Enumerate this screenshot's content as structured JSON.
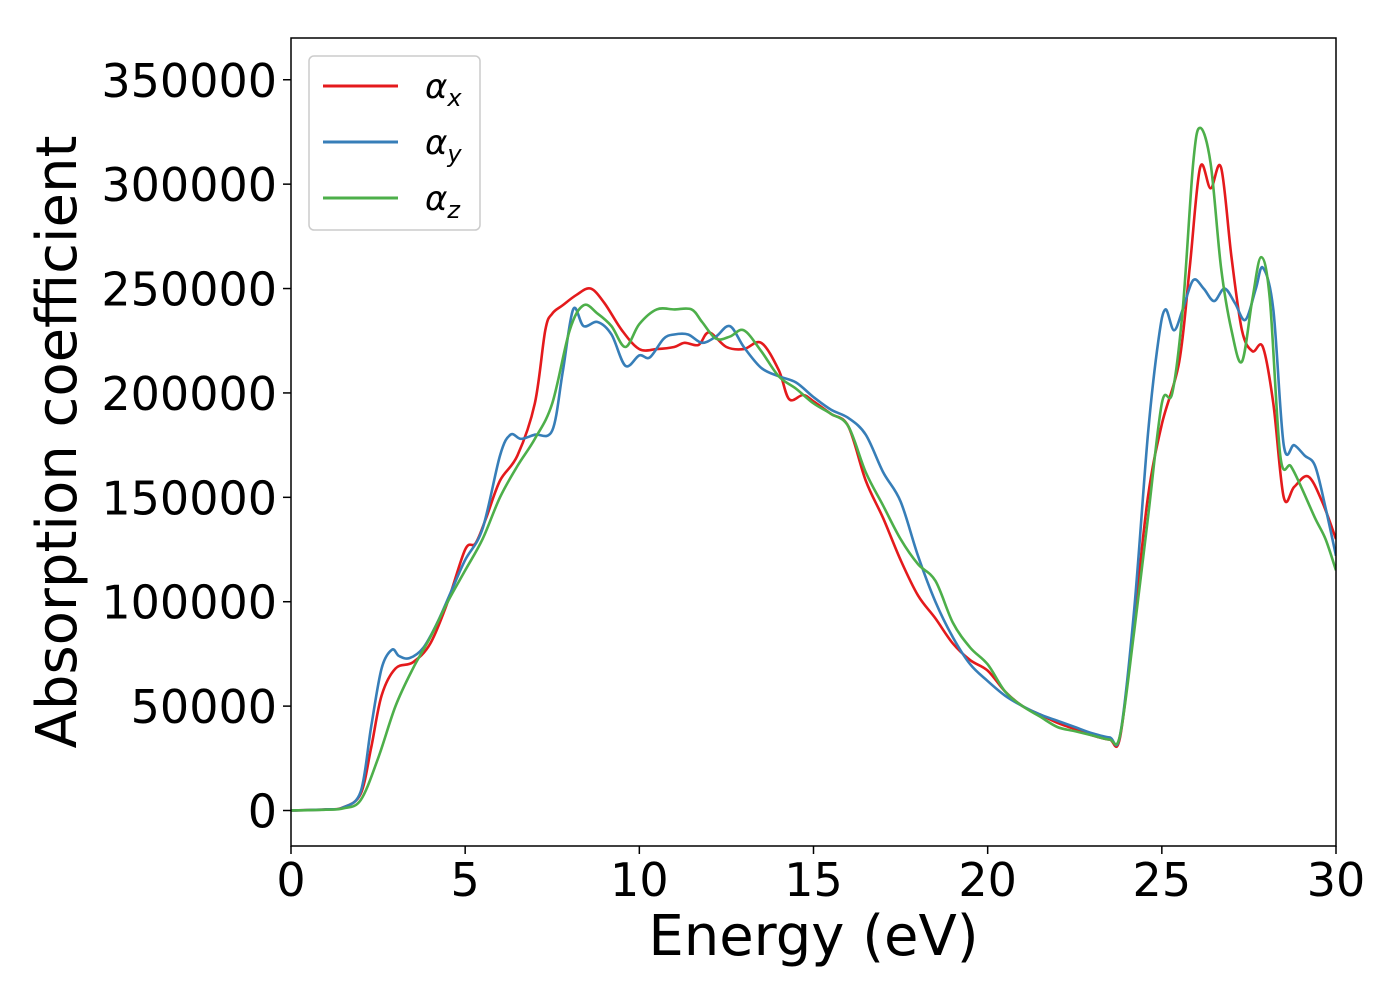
{
  "chart_data": {
    "type": "line",
    "title": "",
    "xlabel": "Energy (eV)",
    "ylabel": "Absorption coefficient",
    "xlim": [
      0,
      30
    ],
    "ylim": [
      -17000,
      370000
    ],
    "xticks": [
      0,
      5,
      10,
      15,
      20,
      25,
      30
    ],
    "yticks": [
      0,
      50000,
      100000,
      150000,
      200000,
      250000,
      300000,
      350000
    ],
    "grid": false,
    "legend_position": "top-left",
    "series": [
      {
        "name": "α_x",
        "legend_symbol": "α",
        "legend_subscript": "x",
        "color": "#e41a1c",
        "x": [
          0,
          1,
          1.5,
          2,
          2.3,
          2.6,
          3.0,
          3.5,
          4.0,
          4.5,
          5.0,
          5.3,
          5.6,
          6.0,
          6.5,
          7.0,
          7.3,
          7.5,
          7.8,
          8.2,
          8.6,
          9.0,
          9.5,
          10.0,
          10.5,
          11.0,
          11.3,
          11.7,
          12.0,
          12.5,
          13.0,
          13.5,
          14.0,
          14.3,
          14.7,
          15.0,
          15.5,
          16.0,
          16.5,
          17.0,
          17.5,
          18.0,
          18.5,
          19.0,
          19.5,
          20.0,
          20.5,
          21.0,
          21.5,
          22.0,
          22.5,
          23.0,
          23.5,
          23.8,
          24.2,
          24.6,
          25.0,
          25.5,
          25.8,
          26.1,
          26.4,
          26.7,
          27.0,
          27.3,
          27.6,
          27.9,
          28.2,
          28.5,
          28.8,
          29.2,
          29.6,
          30.0
        ],
        "y": [
          0,
          500,
          1500,
          8000,
          30000,
          55000,
          68000,
          71000,
          80000,
          100000,
          125000,
          128000,
          140000,
          158000,
          170000,
          195000,
          230000,
          238000,
          242000,
          247000,
          250000,
          243000,
          230000,
          221000,
          221000,
          222000,
          224000,
          223000,
          229000,
          222000,
          221000,
          224000,
          211000,
          197000,
          199000,
          196000,
          190000,
          184000,
          158000,
          140000,
          120000,
          103000,
          92000,
          80000,
          72000,
          67000,
          57000,
          50000,
          46000,
          42000,
          39000,
          36000,
          34000,
          35000,
          90000,
          150000,
          185000,
          215000,
          260000,
          308000,
          298000,
          308000,
          265000,
          230000,
          220000,
          222000,
          195000,
          150000,
          155000,
          160000,
          148000,
          130000
        ]
      },
      {
        "name": "α_y",
        "legend_symbol": "α",
        "legend_subscript": "y",
        "color": "#377eb8",
        "x": [
          0,
          1,
          1.5,
          2,
          2.3,
          2.6,
          2.9,
          3.1,
          3.4,
          3.8,
          4.2,
          4.6,
          5.0,
          5.5,
          6.0,
          6.3,
          6.6,
          7.0,
          7.5,
          7.8,
          8.1,
          8.4,
          8.8,
          9.2,
          9.6,
          10.0,
          10.3,
          10.7,
          11.0,
          11.4,
          11.8,
          12.2,
          12.6,
          13.0,
          13.5,
          14.0,
          14.5,
          15.0,
          15.5,
          16.0,
          16.5,
          17.0,
          17.5,
          18.0,
          18.5,
          19.0,
          19.5,
          20.0,
          20.5,
          21.0,
          21.5,
          22.0,
          22.5,
          23.0,
          23.5,
          23.8,
          24.2,
          24.6,
          24.9,
          25.1,
          25.35,
          25.6,
          25.9,
          26.2,
          26.5,
          26.8,
          27.1,
          27.4,
          27.7,
          27.9,
          28.2,
          28.5,
          28.8,
          29.1,
          29.4,
          29.7,
          30.0
        ],
        "y": [
          0,
          500,
          1500,
          9000,
          40000,
          68000,
          77000,
          74000,
          73000,
          78000,
          90000,
          105000,
          120000,
          135000,
          170000,
          180000,
          178000,
          180000,
          182000,
          210000,
          240000,
          232000,
          234000,
          228000,
          213000,
          218000,
          217000,
          226000,
          228000,
          228000,
          224000,
          227000,
          232000,
          222000,
          212000,
          208000,
          205000,
          198000,
          192000,
          188000,
          180000,
          162000,
          148000,
          122000,
          100000,
          83000,
          70000,
          62000,
          55000,
          50000,
          46000,
          43000,
          40000,
          37000,
          35000,
          36000,
          95000,
          180000,
          225000,
          240000,
          230000,
          240000,
          254000,
          250000,
          244000,
          250000,
          243000,
          235000,
          250000,
          260000,
          240000,
          175000,
          175000,
          170000,
          165000,
          145000,
          122000
        ]
      },
      {
        "name": "α_z",
        "legend_symbol": "α",
        "legend_subscript": "z",
        "color": "#4daf4a",
        "x": [
          0,
          1,
          1.5,
          2,
          2.5,
          3.0,
          3.5,
          4.0,
          4.5,
          5.0,
          5.5,
          6.0,
          6.5,
          7.0,
          7.5,
          8.0,
          8.4,
          8.8,
          9.2,
          9.6,
          10.0,
          10.5,
          11.0,
          11.5,
          11.8,
          12.2,
          12.6,
          13.0,
          13.5,
          14.0,
          14.5,
          15.0,
          15.5,
          16.0,
          16.5,
          17.0,
          17.5,
          18.0,
          18.5,
          19.0,
          19.5,
          20.0,
          20.5,
          21.0,
          21.5,
          22.0,
          22.5,
          23.0,
          23.5,
          23.8,
          24.2,
          24.6,
          25.0,
          25.3,
          25.6,
          25.9,
          26.1,
          26.4,
          26.7,
          27.0,
          27.3,
          27.6,
          27.85,
          28.1,
          28.4,
          28.7,
          29.0,
          29.4,
          29.7,
          30.0
        ],
        "y": [
          0,
          400,
          1000,
          5000,
          25000,
          50000,
          68000,
          83000,
          100000,
          115000,
          130000,
          150000,
          165000,
          178000,
          195000,
          230000,
          242000,
          238000,
          232000,
          222000,
          233000,
          240000,
          240000,
          240000,
          234000,
          226000,
          227000,
          230000,
          220000,
          208000,
          202000,
          195000,
          190000,
          184000,
          162000,
          146000,
          130000,
          118000,
          110000,
          90000,
          78000,
          70000,
          57000,
          50000,
          45000,
          40000,
          38000,
          36000,
          34000,
          36000,
          85000,
          140000,
          195000,
          200000,
          240000,
          310000,
          327000,
          310000,
          260000,
          230000,
          215000,
          245000,
          265000,
          245000,
          170000,
          165000,
          155000,
          140000,
          130000,
          115000
        ]
      }
    ]
  }
}
